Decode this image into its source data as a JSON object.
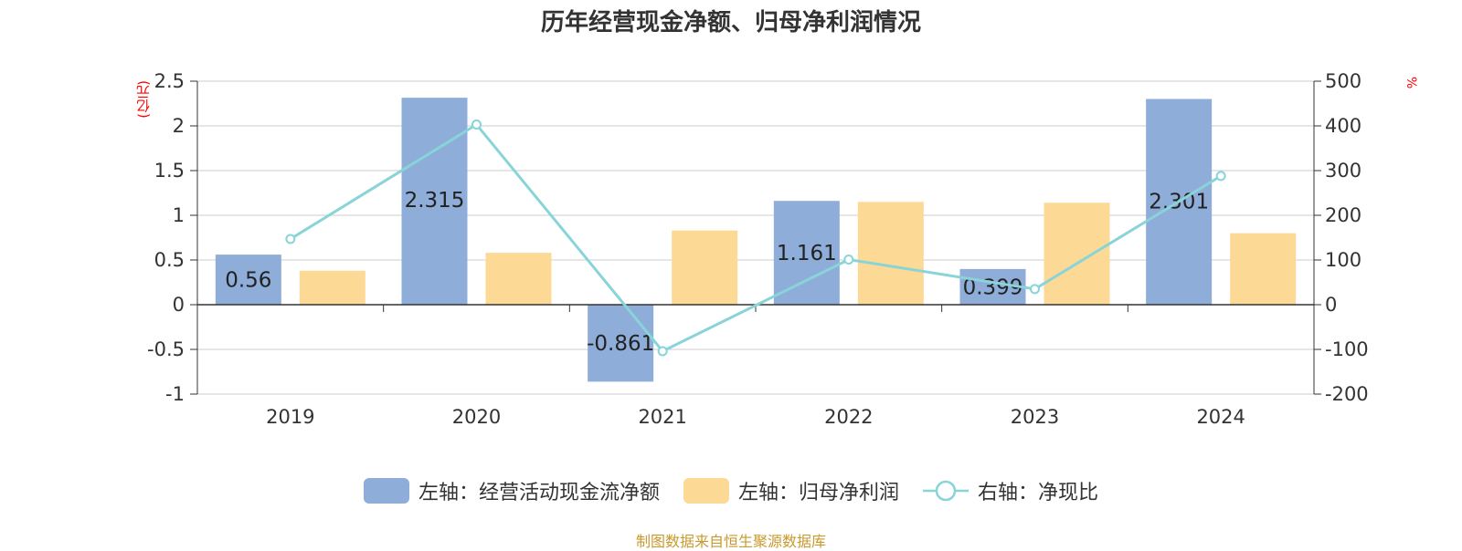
{
  "chart_data": {
    "type": "bar",
    "title": "历年经营现金净额、归母净利润情况",
    "unit_left": "(亿元)",
    "unit_right": "%",
    "categories": [
      "2019",
      "2020",
      "2021",
      "2022",
      "2023",
      "2024"
    ],
    "series": [
      {
        "name": "左轴：经营活动现金流净额",
        "axis": "left",
        "type": "bar",
        "color": "#8eadd9",
        "values": [
          0.56,
          2.315,
          -0.861,
          1.161,
          0.399,
          2.301
        ],
        "labels": [
          "0.56",
          "2.315",
          "-0.861",
          "1.161",
          "0.399",
          "2.301"
        ]
      },
      {
        "name": "左轴：归母净利润",
        "axis": "left",
        "type": "bar",
        "color": "#fdd996",
        "values": [
          0.38,
          0.58,
          0.83,
          1.15,
          1.14,
          0.8
        ]
      },
      {
        "name": "右轴：净现比",
        "axis": "right",
        "type": "line",
        "color": "#88d4d8",
        "values": [
          147,
          403,
          -104,
          101,
          35,
          288
        ]
      }
    ],
    "y_left": {
      "min": -1,
      "max": 2.5,
      "ticks": [
        "2.5",
        "2",
        "1.5",
        "1",
        "0.5",
        "0",
        "-0.5",
        "-1"
      ]
    },
    "y_right": {
      "min": -200,
      "max": 500,
      "ticks": [
        "500",
        "400",
        "300",
        "200",
        "100",
        "0",
        "-100",
        "-200"
      ]
    },
    "grid": true,
    "legend_position": "bottom"
  },
  "source_note": "制图数据来自恒生聚源数据库"
}
